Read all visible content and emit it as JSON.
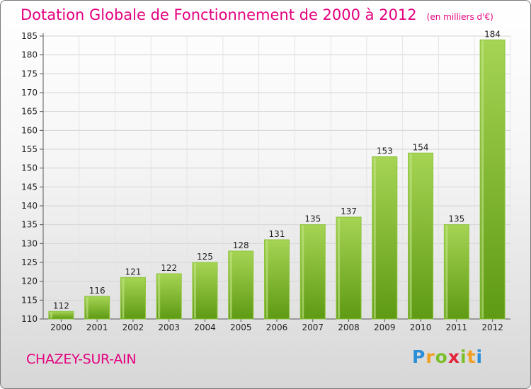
{
  "chart_data": {
    "type": "bar",
    "title": "Dotation Globale de Fonctionnement de 2000 à 2012",
    "subtitle": "(en milliers d'€)",
    "categories": [
      "2000",
      "2001",
      "2002",
      "2003",
      "2004",
      "2005",
      "2006",
      "2007",
      "2008",
      "2009",
      "2010",
      "2011",
      "2012"
    ],
    "values": [
      112,
      116,
      121,
      122,
      125,
      128,
      131,
      135,
      137,
      153,
      154,
      135,
      184
    ],
    "ylim": [
      110,
      185
    ],
    "yticks": [
      110,
      115,
      120,
      125,
      130,
      135,
      140,
      145,
      150,
      155,
      160,
      165,
      170,
      175,
      180,
      185
    ],
    "xlabel": "",
    "ylabel": "",
    "grid": true,
    "colors": {
      "bar_light": "#a6d454",
      "bar_dark": "#5e9a13",
      "title": "#e4007f"
    }
  },
  "city": "CHAZEY-SUR-AIN",
  "logo": {
    "letters": [
      "P",
      "r",
      "o",
      "x",
      "i",
      "t",
      "i"
    ],
    "colors": [
      "#2a8fd8",
      "#f0a020",
      "#7cbf2a",
      "#e2243a",
      "#7cbf2a",
      "#f0a020",
      "#2a8fd8"
    ]
  }
}
